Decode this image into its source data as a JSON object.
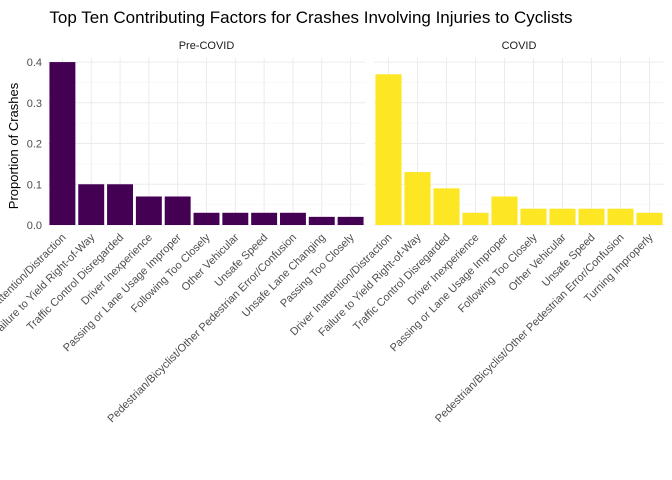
{
  "chart_data": {
    "type": "bar",
    "title": "Top Ten Contributing Factors for Crashes Involving Injuries to Cyclists",
    "xlabel": "",
    "ylabel": "Proportion of Crashes",
    "ylim": [
      0,
      0.41
    ],
    "yticks": [
      "0.0",
      "0.1",
      "0.2",
      "0.3",
      "0.4"
    ],
    "grid": true,
    "legend": "none",
    "panels": [
      {
        "name": "Pre-COVID",
        "color": "#440154",
        "categories": [
          "Driver Inattention/Distraction",
          "Failure to Yield Right-of-Way",
          "Traffic Control Disregarded",
          "Driver Inexperience",
          "Passing or Lane Usage Improper",
          "Following Too Closely",
          "Other Vehicular",
          "Unsafe Speed",
          "Pedestrian/Bicyclist/Other Pedestrian Error/Confusion",
          "Unsafe Lane Changing",
          "Passing Too Closely"
        ],
        "values": [
          0.4,
          0.1,
          0.1,
          0.07,
          0.07,
          0.03,
          0.03,
          0.03,
          0.03,
          0.02,
          0.02
        ]
      },
      {
        "name": "COVID",
        "color": "#FDE725",
        "categories": [
          "Driver Inattention/Distraction",
          "Failure to Yield Right-of-Way",
          "Traffic Control Disregarded",
          "Driver Inexperience",
          "Passing or Lane Usage Improper",
          "Following Too Closely",
          "Other Vehicular",
          "Unsafe Speed",
          "Pedestrian/Bicyclist/Other Pedestrian Error/Confusion",
          "Turning Improperly"
        ],
        "values": [
          0.37,
          0.13,
          0.09,
          0.03,
          0.07,
          0.04,
          0.04,
          0.04,
          0.04,
          0.03
        ]
      }
    ]
  }
}
